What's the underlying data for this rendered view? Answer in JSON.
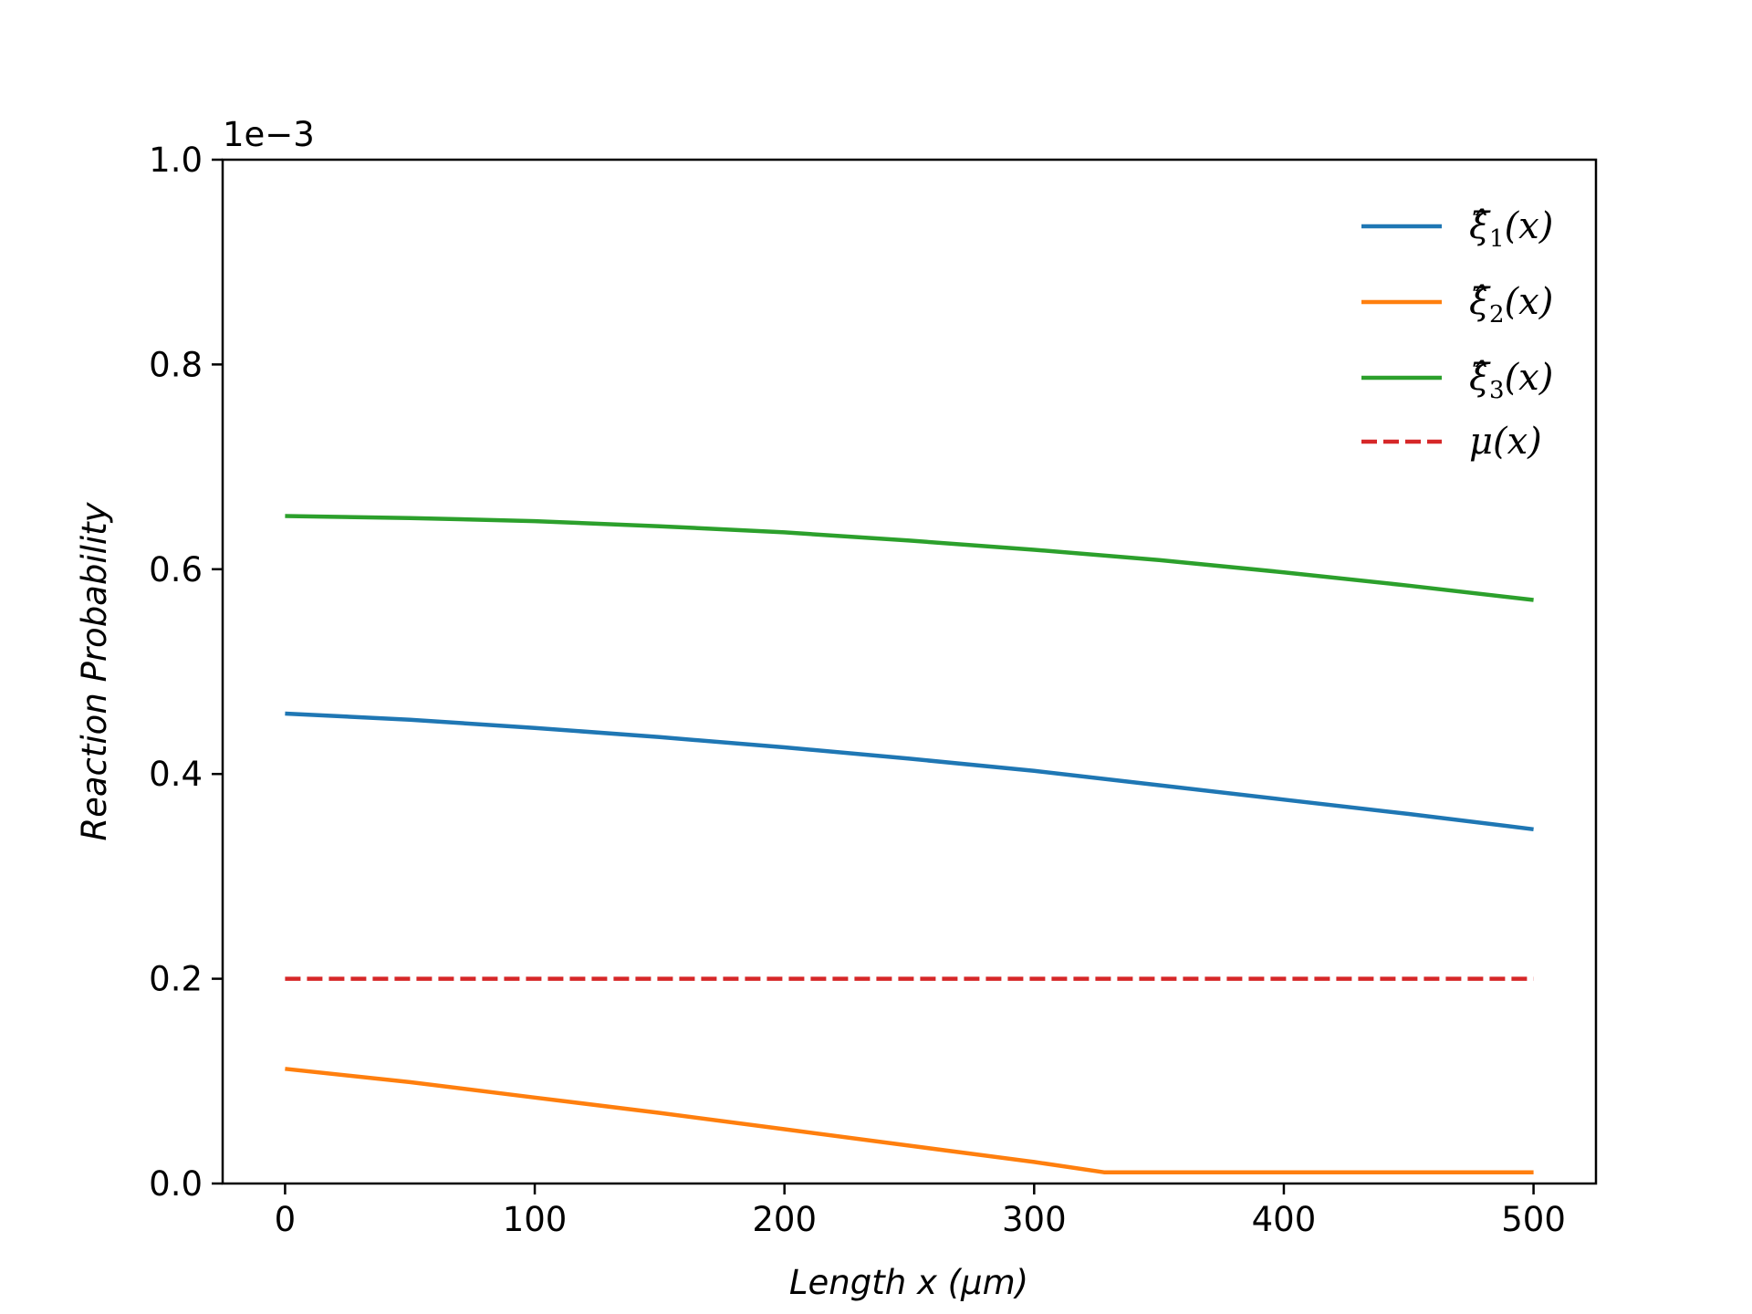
{
  "chart_data": {
    "type": "line",
    "title": "",
    "xlabel": "Length x (μm)",
    "ylabel": "Reaction Probability",
    "y_offset_label": "1e−3",
    "xlim": [
      -25,
      525
    ],
    "ylim": [
      0,
      1.0
    ],
    "xticks": [
      0,
      100,
      200,
      300,
      400,
      500
    ],
    "yticks": [
      0.0,
      0.2,
      0.4,
      0.6,
      0.8,
      1.0
    ],
    "xtick_labels": [
      "0",
      "100",
      "200",
      "300",
      "400",
      "500"
    ],
    "ytick_labels": [
      "0.0",
      "0.2",
      "0.4",
      "0.6",
      "0.8",
      "1.0"
    ],
    "grid": false,
    "legend_position": "top-right",
    "series": [
      {
        "name": "ξ̂1(x)",
        "label_base": "ξ̂",
        "label_sub": "1",
        "label_rest": "(x)",
        "color": "#1f77b4",
        "style": "solid",
        "x": [
          0,
          50,
          100,
          150,
          200,
          250,
          300,
          350,
          400,
          450,
          500
        ],
        "y": [
          0.459,
          0.453,
          0.445,
          0.436,
          0.426,
          0.415,
          0.403,
          0.389,
          0.375,
          0.361,
          0.346
        ]
      },
      {
        "name": "ξ̂2(x)",
        "label_base": "ξ̂",
        "label_sub": "2",
        "label_rest": "(x)",
        "color": "#ff7f0e",
        "style": "solid",
        "x": [
          0,
          50,
          100,
          150,
          200,
          250,
          300,
          328,
          350,
          400,
          450,
          500
        ],
        "y": [
          0.112,
          0.099,
          0.084,
          0.069,
          0.053,
          0.037,
          0.021,
          0.011,
          0.011,
          0.011,
          0.011,
          0.011
        ]
      },
      {
        "name": "ξ̂3(x)",
        "label_base": "ξ̂",
        "label_sub": "3",
        "label_rest": "(x)",
        "color": "#2ca02c",
        "style": "solid",
        "x": [
          0,
          50,
          100,
          150,
          200,
          250,
          300,
          350,
          400,
          450,
          500
        ],
        "y": [
          0.652,
          0.65,
          0.647,
          0.642,
          0.636,
          0.628,
          0.619,
          0.609,
          0.597,
          0.584,
          0.57
        ]
      },
      {
        "name": "μ(x)",
        "label_base": "μ",
        "label_sub": "",
        "label_rest": "(x)",
        "color": "#d62728",
        "style": "dashed",
        "x": [
          0,
          500
        ],
        "y": [
          0.2,
          0.2
        ]
      }
    ]
  }
}
